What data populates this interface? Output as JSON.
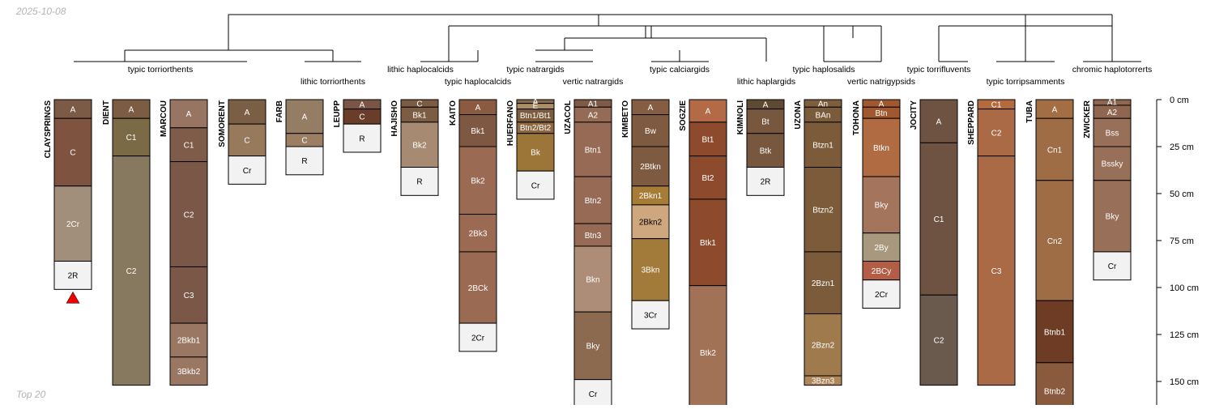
{
  "date_stamp": "2025-10-08",
  "footer_label": "Top 20",
  "depth_axis": {
    "unit": "cm",
    "ticks": [
      "0 cm",
      "25 cm",
      "50 cm",
      "75 cm",
      "100 cm",
      "125 cm",
      "150 cm"
    ],
    "tick_values": [
      0,
      25,
      50,
      75,
      100,
      125,
      150
    ]
  },
  "group_labels": [
    {
      "text": "typic torriorthents"
    },
    {
      "text": "lithic torriorthents"
    },
    {
      "text": "lithic haplocalcids"
    },
    {
      "text": "typic haplocalcids"
    },
    {
      "text": "typic natrargids"
    },
    {
      "text": "vertic natrargids"
    },
    {
      "text": "typic calciargids"
    },
    {
      "text": "lithic haplargids"
    },
    {
      "text": "typic haplosalids"
    },
    {
      "text": "vertic natrigypsids"
    },
    {
      "text": "typic torrifluvents"
    },
    {
      "text": "typic torripsamments"
    },
    {
      "text": "chromic haplotorrerts"
    }
  ],
  "profiles": [
    {
      "name": "CLAYSPRINGS",
      "marker": true,
      "horizons": [
        {
          "name": "A",
          "top": 0,
          "bottom": 10,
          "color": "#7b5a46"
        },
        {
          "name": "C",
          "top": 10,
          "bottom": 46,
          "color": "#7e5440"
        },
        {
          "name": "2Cr",
          "top": 46,
          "bottom": 86,
          "color": "#a28f7b"
        },
        {
          "name": "2R",
          "top": 86,
          "bottom": 101,
          "color": "#f2f2f2"
        }
      ]
    },
    {
      "name": "DIENT",
      "horizons": [
        {
          "name": "A",
          "top": 0,
          "bottom": 10,
          "color": "#7c5d44"
        },
        {
          "name": "C1",
          "top": 10,
          "bottom": 30,
          "color": "#7a6a46"
        },
        {
          "name": "C2",
          "top": 30,
          "bottom": 152,
          "color": "#86795f"
        }
      ]
    },
    {
      "name": "MARCOU",
      "horizons": [
        {
          "name": "A",
          "top": 0,
          "bottom": 15,
          "color": "#987462"
        },
        {
          "name": "C1",
          "top": 15,
          "bottom": 33,
          "color": "#7f5b4a"
        },
        {
          "name": "C2",
          "top": 33,
          "bottom": 89,
          "color": "#7a5747"
        },
        {
          "name": "C3",
          "top": 89,
          "bottom": 119,
          "color": "#7a5747"
        },
        {
          "name": "2Bkb1",
          "top": 119,
          "bottom": 137,
          "color": "#9a7762"
        },
        {
          "name": "3Bkb2",
          "top": 137,
          "bottom": 152,
          "color": "#9a7762"
        }
      ]
    },
    {
      "name": "SOMORENT",
      "horizons": [
        {
          "name": "A",
          "top": 0,
          "bottom": 13,
          "color": "#7a5f44"
        },
        {
          "name": "C",
          "top": 13,
          "bottom": 30,
          "color": "#977a5c"
        },
        {
          "name": "Cr",
          "top": 30,
          "bottom": 45,
          "color": "#f2f2f2"
        }
      ]
    },
    {
      "name": "FARB",
      "horizons": [
        {
          "name": "A",
          "top": 0,
          "bottom": 18,
          "color": "#947c65"
        },
        {
          "name": "C",
          "top": 18,
          "bottom": 25,
          "color": "#9c7f63"
        },
        {
          "name": "R",
          "top": 25,
          "bottom": 40,
          "color": "#f2f2f2"
        }
      ]
    },
    {
      "name": "LEUPP",
      "horizons": [
        {
          "name": "A",
          "top": 0,
          "bottom": 5,
          "color": "#7a5545"
        },
        {
          "name": "C",
          "top": 5,
          "bottom": 13,
          "color": "#6a3d2b"
        },
        {
          "name": "R",
          "top": 13,
          "bottom": 28,
          "color": "#f2f2f2"
        }
      ]
    },
    {
      "name": "HAJISHO",
      "horizons": [
        {
          "name": "C",
          "top": 0,
          "bottom": 4,
          "color": "#7c5d44"
        },
        {
          "name": "Bk1",
          "top": 4,
          "bottom": 12,
          "color": "#7c5d44"
        },
        {
          "name": "Bk2",
          "top": 12,
          "bottom": 36,
          "color": "#a68a71"
        },
        {
          "name": "R",
          "top": 36,
          "bottom": 51,
          "color": "#f2f2f2"
        }
      ]
    },
    {
      "name": "KAITO",
      "horizons": [
        {
          "name": "A",
          "top": 0,
          "bottom": 8,
          "color": "#8a5b41"
        },
        {
          "name": "Bk1",
          "top": 8,
          "bottom": 25,
          "color": "#7f5843"
        },
        {
          "name": "Bk2",
          "top": 25,
          "bottom": 61,
          "color": "#9a6b52"
        },
        {
          "name": "2Bk3",
          "top": 61,
          "bottom": 81,
          "color": "#9a6b52"
        },
        {
          "name": "2BCk",
          "top": 81,
          "bottom": 119,
          "color": "#9a6b52"
        },
        {
          "name": "2Cr",
          "top": 119,
          "bottom": 134,
          "color": "#f2f2f2"
        }
      ]
    },
    {
      "name": "HUERFANO",
      "horizons": [
        {
          "name": "A",
          "top": 0,
          "bottom": 2,
          "color": "#8c6d4a"
        },
        {
          "name": "E",
          "top": 2,
          "bottom": 5,
          "color": "#a98e66"
        },
        {
          "name": "Btn1/Bt1",
          "top": 5,
          "bottom": 12,
          "color": "#7d5b3d"
        },
        {
          "name": "Btn2/Bt2",
          "top": 12,
          "bottom": 18,
          "color": "#8f6842"
        },
        {
          "name": "Bk",
          "top": 18,
          "bottom": 38,
          "color": "#9c7638"
        },
        {
          "name": "Cr",
          "top": 38,
          "bottom": 53,
          "color": "#f2f2f2"
        }
      ]
    },
    {
      "name": "UZACOL",
      "horizons": [
        {
          "name": "A1",
          "top": 0,
          "bottom": 4,
          "color": "#7f5a46"
        },
        {
          "name": "A2",
          "top": 4,
          "bottom": 12,
          "color": "#956b56"
        },
        {
          "name": "Btn1",
          "top": 12,
          "bottom": 41,
          "color": "#966a55"
        },
        {
          "name": "Btn2",
          "top": 41,
          "bottom": 66,
          "color": "#966a55"
        },
        {
          "name": "Btn3",
          "top": 66,
          "bottom": 78,
          "color": "#966a55"
        },
        {
          "name": "Bkn",
          "top": 78,
          "bottom": 113,
          "color": "#ad8d77"
        },
        {
          "name": "Bky",
          "top": 113,
          "bottom": 149,
          "color": "#8c6a4f"
        },
        {
          "name": "Cr",
          "top": 149,
          "bottom": 164,
          "color": "#f2f2f2"
        }
      ]
    },
    {
      "name": "KIMBETO",
      "horizons": [
        {
          "name": "A",
          "top": 0,
          "bottom": 8,
          "color": "#855d43"
        },
        {
          "name": "Bw",
          "top": 8,
          "bottom": 25,
          "color": "#7e5a40"
        },
        {
          "name": "2Btkn",
          "top": 25,
          "bottom": 46,
          "color": "#7e5a40"
        },
        {
          "name": "2Bkn1",
          "top": 46,
          "bottom": 56,
          "color": "#a67c36"
        },
        {
          "name": "2Bkn2",
          "top": 56,
          "bottom": 74,
          "color": "#cfa77f"
        },
        {
          "name": "3Bkn",
          "top": 74,
          "bottom": 107,
          "color": "#a27b3a"
        },
        {
          "name": "3Cr",
          "top": 107,
          "bottom": 122,
          "color": "#f2f2f2"
        }
      ]
    },
    {
      "name": "SOGZIE",
      "horizons": [
        {
          "name": "A",
          "top": 0,
          "bottom": 12,
          "color": "#b26b46"
        },
        {
          "name": "Bt1",
          "top": 12,
          "bottom": 30,
          "color": "#8d4a2c"
        },
        {
          "name": "Bt2",
          "top": 30,
          "bottom": 53,
          "color": "#8d4a2c"
        },
        {
          "name": "Btk1",
          "top": 53,
          "bottom": 99,
          "color": "#8d4a2c"
        },
        {
          "name": "Btk2",
          "top": 99,
          "bottom": 170,
          "color": "#a27256"
        }
      ]
    },
    {
      "name": "KIMNOLI",
      "horizons": [
        {
          "name": "A",
          "top": 0,
          "bottom": 5,
          "color": "#5e4a32"
        },
        {
          "name": "Bt",
          "top": 5,
          "bottom": 18,
          "color": "#77583f"
        },
        {
          "name": "Btk",
          "top": 18,
          "bottom": 36,
          "color": "#77583f"
        },
        {
          "name": "2R",
          "top": 36,
          "bottom": 51,
          "color": "#f2f2f2"
        }
      ]
    },
    {
      "name": "UZONA",
      "horizons": [
        {
          "name": "An",
          "top": 0,
          "bottom": 4,
          "color": "#7e5e3e"
        },
        {
          "name": "BAn",
          "top": 4,
          "bottom": 12,
          "color": "#7a5b3a"
        },
        {
          "name": "Btzn1",
          "top": 12,
          "bottom": 36,
          "color": "#7b5b39"
        },
        {
          "name": "Btzn2",
          "top": 36,
          "bottom": 81,
          "color": "#7b5b39"
        },
        {
          "name": "2Bzn1",
          "top": 81,
          "bottom": 114,
          "color": "#7b5b39"
        },
        {
          "name": "2Bzn2",
          "top": 114,
          "bottom": 147,
          "color": "#9e7a4d"
        },
        {
          "name": "3Bzn3",
          "top": 147,
          "bottom": 152,
          "color": "#b0875a"
        }
      ]
    },
    {
      "name": "TOHONA",
      "horizons": [
        {
          "name": "A",
          "top": 0,
          "bottom": 4,
          "color": "#a0582e"
        },
        {
          "name": "Btn",
          "top": 4,
          "bottom": 10,
          "color": "#a0582e"
        },
        {
          "name": "Btkn",
          "top": 10,
          "bottom": 41,
          "color": "#b06b43"
        },
        {
          "name": "Bky",
          "top": 41,
          "bottom": 71,
          "color": "#a5745d"
        },
        {
          "name": "2By",
          "top": 71,
          "bottom": 86,
          "color": "#a8987e"
        },
        {
          "name": "2BCy",
          "top": 86,
          "bottom": 96,
          "color": "#b35d47"
        },
        {
          "name": "2Cr",
          "top": 96,
          "bottom": 111,
          "color": "#f2f2f2"
        }
      ]
    },
    {
      "name": "JOCITY",
      "horizons": [
        {
          "name": "A",
          "top": 0,
          "bottom": 23,
          "color": "#6f5342"
        },
        {
          "name": "C1",
          "top": 23,
          "bottom": 104,
          "color": "#6f5342"
        },
        {
          "name": "C2",
          "top": 104,
          "bottom": 152,
          "color": "#6a5a4d"
        }
      ]
    },
    {
      "name": "SHEPPARD",
      "horizons": [
        {
          "name": "C1",
          "top": 0,
          "bottom": 5,
          "color": "#b26a3f"
        },
        {
          "name": "C2",
          "top": 5,
          "bottom": 30,
          "color": "#a96a45"
        },
        {
          "name": "C3",
          "top": 30,
          "bottom": 152,
          "color": "#a96a45"
        }
      ]
    },
    {
      "name": "TUBA",
      "horizons": [
        {
          "name": "A",
          "top": 0,
          "bottom": 10,
          "color": "#a36e44"
        },
        {
          "name": "Cn1",
          "top": 10,
          "bottom": 43,
          "color": "#9e6c45"
        },
        {
          "name": "Cn2",
          "top": 43,
          "bottom": 107,
          "color": "#9e6c45"
        },
        {
          "name": "Btnb1",
          "top": 107,
          "bottom": 140,
          "color": "#6e3c24"
        },
        {
          "name": "Btnb2",
          "top": 140,
          "bottom": 170,
          "color": "#8a5a3f"
        }
      ]
    },
    {
      "name": "ZWICKER",
      "horizons": [
        {
          "name": "A1",
          "top": 0,
          "bottom": 3,
          "color": "#8f6650"
        },
        {
          "name": "A2",
          "top": 3,
          "bottom": 10,
          "color": "#8f6650"
        },
        {
          "name": "Bss",
          "top": 10,
          "bottom": 25,
          "color": "#987059"
        },
        {
          "name": "Bssky",
          "top": 25,
          "bottom": 43,
          "color": "#987059"
        },
        {
          "name": "Bky",
          "top": 43,
          "bottom": 81,
          "color": "#987059"
        },
        {
          "name": "Cr",
          "top": 81,
          "bottom": 96,
          "color": "#f2f2f2"
        }
      ]
    }
  ]
}
